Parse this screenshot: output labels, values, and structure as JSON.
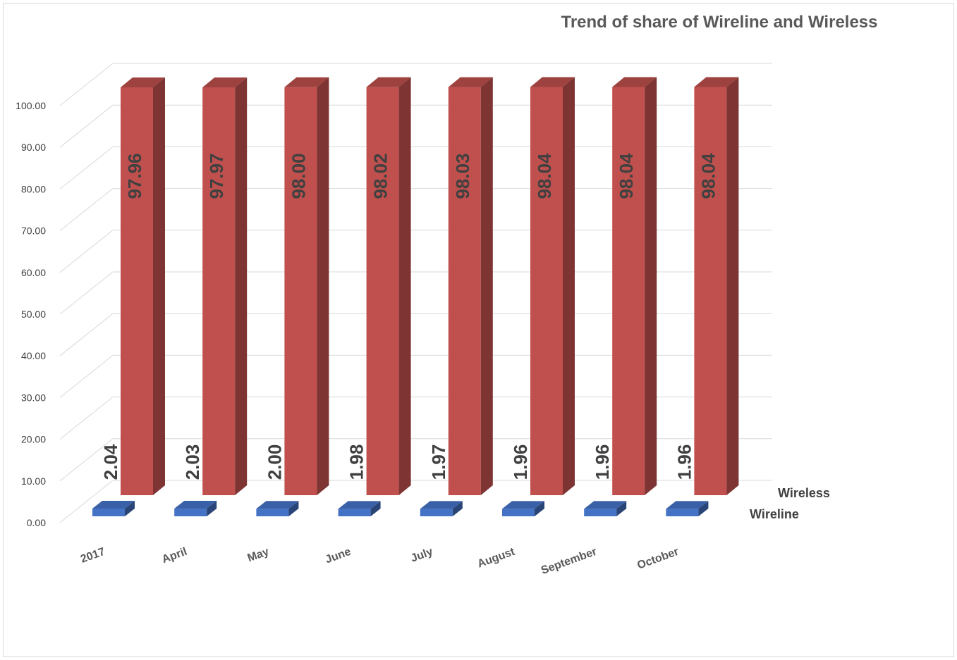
{
  "chart_data": {
    "type": "bar",
    "title": "Trend of  share of Wireline and Wireless",
    "categories": [
      "2017",
      "April",
      "May",
      "June",
      "July",
      "August",
      "September",
      "October"
    ],
    "series": [
      {
        "name": "Wireline",
        "values": [
          2.04,
          2.03,
          2.0,
          1.98,
          1.97,
          1.96,
          1.96,
          1.96
        ],
        "color": "#4472c4"
      },
      {
        "name": "Wireless",
        "values": [
          97.96,
          97.97,
          98.0,
          98.02,
          98.03,
          98.04,
          98.04,
          98.04
        ],
        "color": "#c0504d"
      }
    ],
    "value_labels": {
      "Wireline": [
        "2.04",
        "2.03",
        "2.00",
        "1.98",
        "1.97",
        "1.96",
        "1.96",
        "1.96"
      ],
      "Wireless": [
        "97.96",
        "97.97",
        "98.00",
        "98.02",
        "98.03",
        "98.04",
        "98.04",
        "98.04"
      ]
    },
    "y_ticks": [
      "0.00",
      "10.00",
      "20.00",
      "30.00",
      "40.00",
      "50.00",
      "60.00",
      "70.00",
      "80.00",
      "90.00",
      "100.00"
    ],
    "ylim": [
      0,
      100
    ],
    "grid": true,
    "style": "3d-column",
    "xlabel": "",
    "ylabel": ""
  }
}
